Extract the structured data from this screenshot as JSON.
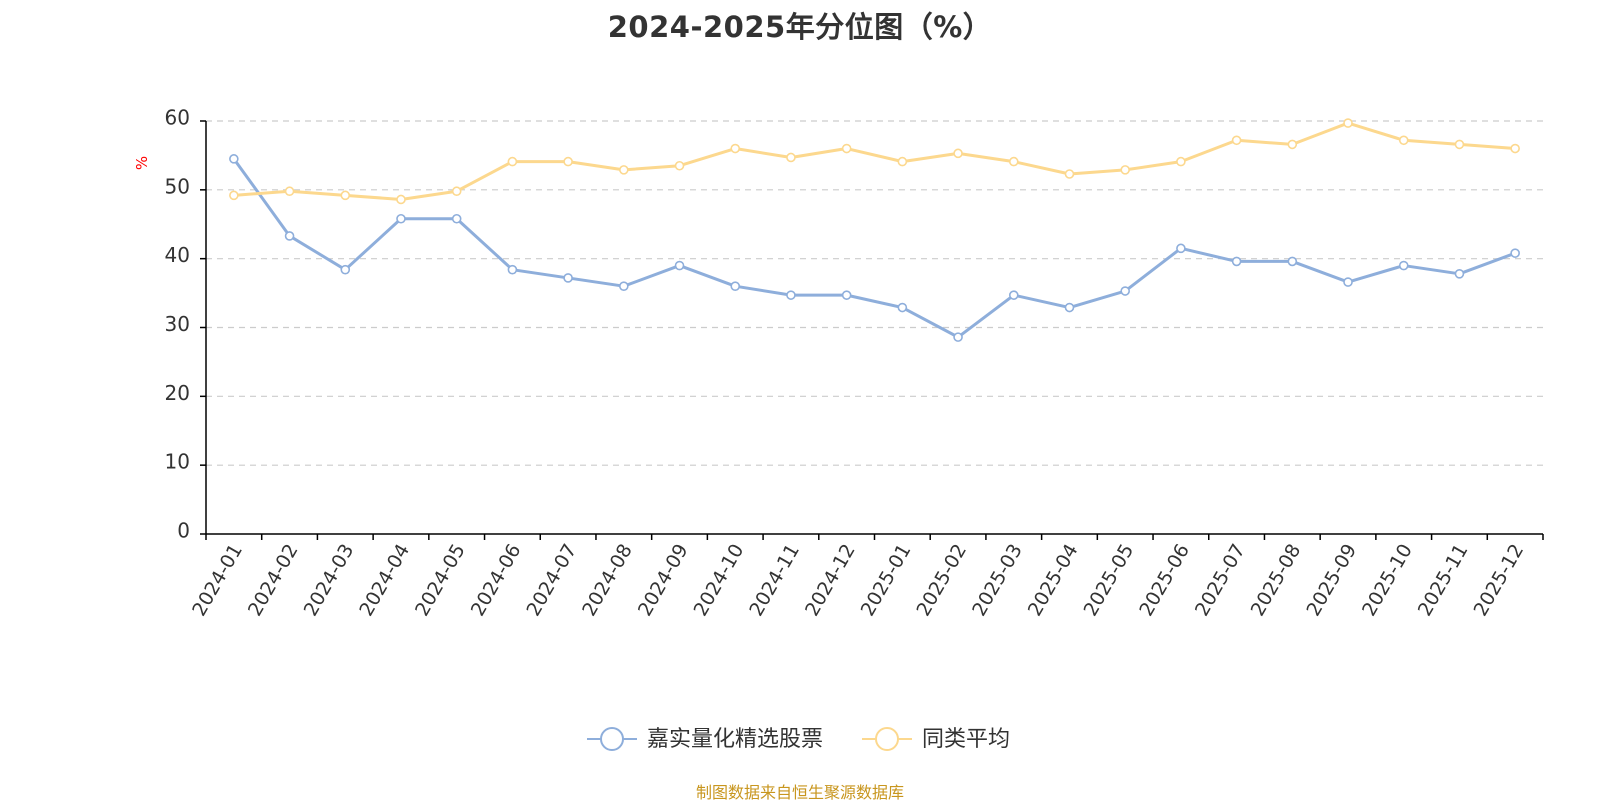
{
  "chart_data": {
    "type": "line",
    "title": "2024-2025年分位图（%）",
    "ylabel": "%",
    "xlabel": "",
    "ylim": [
      0,
      60
    ],
    "yticks": [
      0,
      10,
      20,
      30,
      40,
      50,
      60
    ],
    "grid": true,
    "legend_position": "bottom-center",
    "categories": [
      "2024-01",
      "2024-02",
      "2024-03",
      "2024-04",
      "2024-05",
      "2024-06",
      "2024-07",
      "2024-08",
      "2024-09",
      "2024-10",
      "2024-11",
      "2024-12",
      "2025-01",
      "2025-02",
      "2025-03",
      "2025-04",
      "2025-05",
      "2025-06",
      "2025-07",
      "2025-08",
      "2025-09",
      "2025-10",
      "2025-11",
      "2025-12"
    ],
    "series": [
      {
        "name": "嘉实量化精选股票",
        "color": "#8eaedb",
        "values": [
          54.5,
          43.3,
          38.4,
          45.8,
          45.8,
          38.4,
          37.2,
          36.0,
          39.0,
          36.0,
          34.7,
          34.7,
          32.9,
          28.6,
          34.7,
          32.9,
          35.3,
          41.5,
          39.6,
          39.6,
          36.6,
          39.0,
          37.8,
          40.8
        ]
      },
      {
        "name": "同类平均",
        "color": "#fcd88e",
        "values": [
          49.2,
          49.8,
          49.2,
          48.6,
          49.8,
          54.1,
          54.1,
          52.9,
          53.5,
          56.0,
          54.7,
          56.0,
          54.1,
          55.3,
          54.1,
          52.3,
          52.9,
          54.1,
          57.2,
          56.6,
          59.7,
          57.2,
          56.6,
          56.0
        ]
      }
    ]
  },
  "footer": {
    "source": "制图数据来自恒生聚源数据库"
  },
  "colors": {
    "axis": "#000000",
    "grid": "#cccccc",
    "tick_text": "#333333",
    "ylabel": "#ff0000",
    "source": "#c8961e"
  }
}
